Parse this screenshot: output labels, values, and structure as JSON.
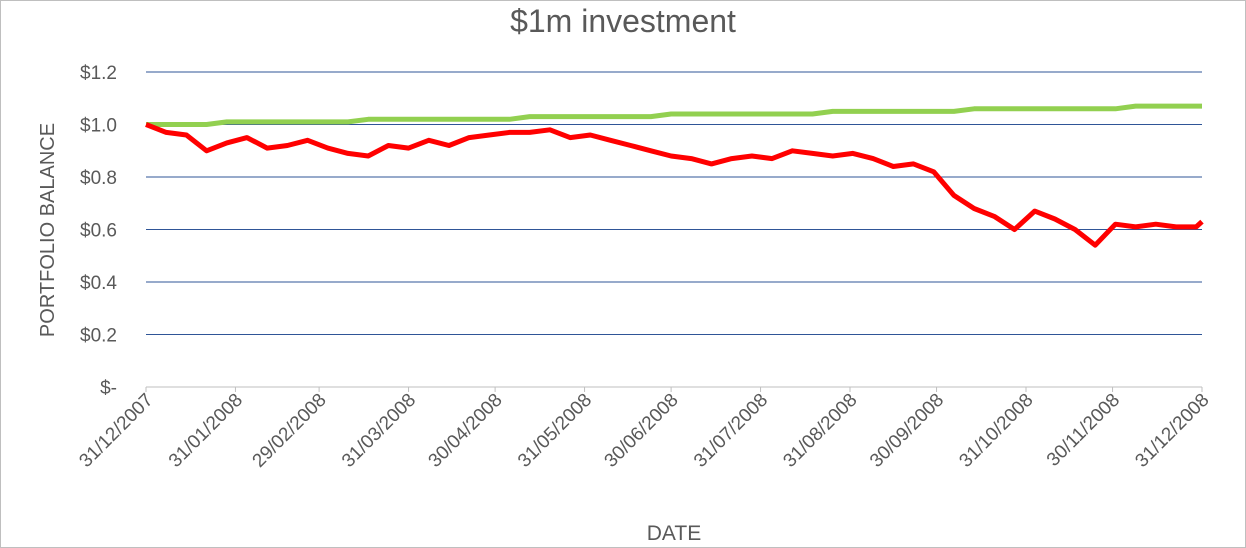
{
  "chart_data": {
    "type": "line",
    "title": "$1m investment",
    "xlabel": "DATE",
    "ylabel": "PORTFOLIO BALANCE",
    "x": [
      "31/12/2007",
      "07/01/2008",
      "14/01/2008",
      "21/01/2008",
      "28/01/2008",
      "04/02/2008",
      "11/02/2008",
      "18/02/2008",
      "25/02/2008",
      "03/03/2008",
      "10/03/2008",
      "17/03/2008",
      "24/03/2008",
      "31/03/2008",
      "07/04/2008",
      "14/04/2008",
      "21/04/2008",
      "28/04/2008",
      "05/05/2008",
      "12/05/2008",
      "19/05/2008",
      "26/05/2008",
      "02/06/2008",
      "09/06/2008",
      "16/06/2008",
      "23/06/2008",
      "30/06/2008",
      "07/07/2008",
      "14/07/2008",
      "21/07/2008",
      "28/07/2008",
      "04/08/2008",
      "11/08/2008",
      "18/08/2008",
      "25/08/2008",
      "01/09/2008",
      "08/09/2008",
      "15/09/2008",
      "22/09/2008",
      "29/09/2008",
      "06/10/2008",
      "13/10/2008",
      "20/10/2008",
      "27/10/2008",
      "03/11/2008",
      "10/11/2008",
      "17/11/2008",
      "24/11/2008",
      "01/12/2008",
      "08/12/2008",
      "15/12/2008",
      "22/12/2008",
      "29/12/2008",
      "31/12/2008"
    ],
    "series": [
      {
        "color": "#92d050",
        "values": [
          1.0,
          1.0,
          1.0,
          1.0,
          1.01,
          1.01,
          1.01,
          1.01,
          1.01,
          1.01,
          1.01,
          1.02,
          1.02,
          1.02,
          1.02,
          1.02,
          1.02,
          1.02,
          1.02,
          1.03,
          1.03,
          1.03,
          1.03,
          1.03,
          1.03,
          1.03,
          1.04,
          1.04,
          1.04,
          1.04,
          1.04,
          1.04,
          1.04,
          1.04,
          1.05,
          1.05,
          1.05,
          1.05,
          1.05,
          1.05,
          1.05,
          1.06,
          1.06,
          1.06,
          1.06,
          1.06,
          1.06,
          1.06,
          1.06,
          1.07,
          1.07,
          1.07,
          1.07,
          1.07
        ]
      },
      {
        "color": "#ff0000",
        "values": [
          1.0,
          0.97,
          0.96,
          0.9,
          0.93,
          0.95,
          0.91,
          0.92,
          0.94,
          0.91,
          0.89,
          0.88,
          0.92,
          0.91,
          0.94,
          0.92,
          0.95,
          0.96,
          0.97,
          0.97,
          0.98,
          0.95,
          0.96,
          0.94,
          0.92,
          0.9,
          0.88,
          0.87,
          0.85,
          0.87,
          0.88,
          0.87,
          0.9,
          0.89,
          0.88,
          0.89,
          0.87,
          0.84,
          0.85,
          0.82,
          0.73,
          0.68,
          0.65,
          0.6,
          0.67,
          0.64,
          0.6,
          0.54,
          0.62,
          0.61,
          0.62,
          0.61,
          0.61,
          0.63
        ]
      }
    ],
    "xlim": [
      "31/12/2007",
      "31/12/2008"
    ],
    "xticks": [
      "31/12/2007",
      "31/01/2008",
      "29/02/2008",
      "31/03/2008",
      "30/04/2008",
      "31/05/2008",
      "30/06/2008",
      "31/07/2008",
      "31/08/2008",
      "30/09/2008",
      "31/10/2008",
      "30/11/2008",
      "31/12/2008"
    ],
    "ylim": [
      0,
      1.2
    ],
    "yticks": [
      {
        "value": 0,
        "label": "$-"
      },
      {
        "value": 0.2,
        "label": "$0.2"
      },
      {
        "value": 0.4,
        "label": "$0.4"
      },
      {
        "value": 0.6,
        "label": "$0.6"
      },
      {
        "value": 0.8,
        "label": "$0.8"
      },
      {
        "value": 1.0,
        "label": "$1.0"
      },
      {
        "value": 1.2,
        "label": "$1.2"
      }
    ],
    "grid": true
  }
}
